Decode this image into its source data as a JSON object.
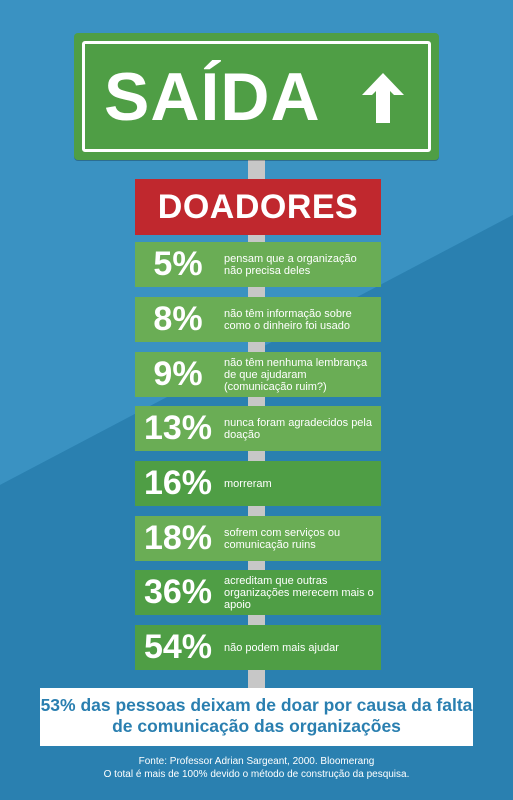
{
  "sign": {
    "title": "SAÍDA",
    "icon": "arrow-up-icon"
  },
  "banner": {
    "label": "DOADORES"
  },
  "reasons": [
    {
      "percent": "5%",
      "text": "pensam que a organização não precisa deles"
    },
    {
      "percent": "8%",
      "text": "não têm informação sobre como o dinheiro foi usado"
    },
    {
      "percent": "9%",
      "text": "não têm nenhuma lembrança de que ajudaram (comunicação ruim?)"
    },
    {
      "percent": "13%",
      "text": "nunca foram agradecidos pela doação"
    },
    {
      "percent": "16%",
      "text": "morreram"
    },
    {
      "percent": "18%",
      "text": "sofrem com serviços ou comunicação ruins"
    },
    {
      "percent": "36%",
      "text": "acreditam que outras organizações merecem mais o apoio"
    },
    {
      "percent": "54%",
      "text": "não podem mais ajudar"
    }
  ],
  "callout": {
    "text": "53% das pessoas deixam de doar por causa da falta de comunicação das organizações"
  },
  "footer": {
    "source": "Fonte: Professor Adrian Sargeant, 2000. Bloomerang",
    "note": "O total é mais de 100% devido o método de construção da pesquisa."
  },
  "colors": {
    "background": "#2d86b7",
    "sign_green": "#4f9e45",
    "banner_red": "#c0282e",
    "row_dark": "#4f9e45",
    "row_light": "#6aad55",
    "callout_text": "#2a7fb0"
  }
}
